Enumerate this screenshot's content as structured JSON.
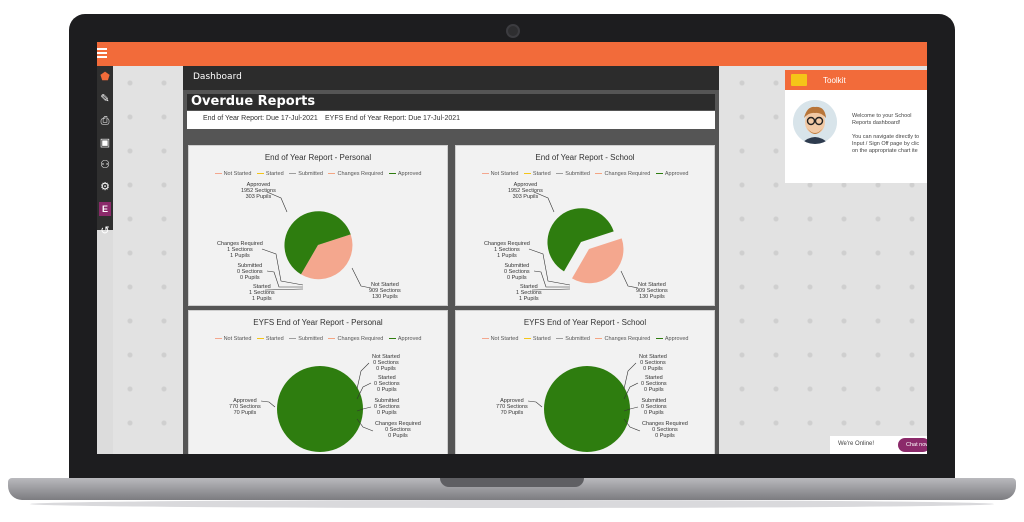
{
  "colors": {
    "accent": "#f26b3a",
    "approved": "#2e7d0f",
    "not_started": "#f4a78e",
    "started": "#f5c518",
    "submitted": "#9e9e9e",
    "changes_required": "#f4a582"
  },
  "topbar": {
    "menu_icon": "hamburger-icon"
  },
  "sidebar": {
    "icons": [
      "shield-icon",
      "pencil-icon",
      "printer-icon",
      "edit-box-icon",
      "users-icon",
      "gears-icon",
      "e-icon",
      "history-icon"
    ]
  },
  "dashboard": {
    "title": "Dashboard",
    "overdue_title": "Overdue Reports",
    "due_1": "End of Year Report: Due 17-Jul-2021",
    "due_2": "EYFS End of Year Report: Due 17-Jul-2021"
  },
  "legend": [
    "Not Started",
    "Started",
    "Submitted",
    "Changes Required",
    "Approved"
  ],
  "charts": [
    {
      "title": "End of Year Report - Personal",
      "approved": [
        "Approved",
        "1952 Sections",
        "303 Pupils"
      ],
      "changes": [
        "Changes Required",
        "1 Sections",
        "1 Pupils"
      ],
      "submitted": [
        "Submitted",
        "0 Sections",
        "0 Pupils"
      ],
      "started": [
        "Started",
        "1 Sections",
        "1 Pupils"
      ],
      "not_started": [
        "Not Started",
        "909 Sections",
        "130 Pupils"
      ]
    },
    {
      "title": "End of Year Report - School",
      "approved": [
        "Approved",
        "1952 Sections",
        "303 Pupils"
      ],
      "changes": [
        "Changes Required",
        "1 Sections",
        "1 Pupils"
      ],
      "submitted": [
        "Submitted",
        "0 Sections",
        "0 Pupils"
      ],
      "started": [
        "Started",
        "1 Sections",
        "1 Pupils"
      ],
      "not_started": [
        "Not Started",
        "909 Sections",
        "130 Pupils"
      ]
    },
    {
      "title": "EYFS End of Year Report - Personal",
      "approved": [
        "Approved",
        "770 Sections",
        "70 Pupils"
      ],
      "not_started": [
        "Not Started",
        "0 Sections",
        "0 Pupils"
      ],
      "started": [
        "Started",
        "0 Sections",
        "0 Pupils"
      ],
      "submitted": [
        "Submitted",
        "0 Sections",
        "0 Pupils"
      ],
      "changes": [
        "Changes Required",
        "0 Sections",
        "0 Pupils"
      ]
    },
    {
      "title": "EYFS End of Year Report - School",
      "approved": [
        "Approved",
        "770 Sections",
        "70 Pupils"
      ],
      "not_started": [
        "Not Started",
        "0 Sections",
        "0 Pupils"
      ],
      "started": [
        "Started",
        "0 Sections",
        "0 Pupils"
      ],
      "submitted": [
        "Submitted",
        "0 Sections",
        "0 Pupils"
      ],
      "changes": [
        "Changes Required",
        "0 Sections",
        "0 Pupils"
      ]
    }
  ],
  "chart_data": [
    {
      "type": "pie",
      "title": "End of Year Report - Personal",
      "categories": [
        "Approved",
        "Not Started",
        "Started",
        "Submitted",
        "Changes Required"
      ],
      "values": [
        1952,
        909,
        1,
        0,
        1
      ]
    },
    {
      "type": "pie",
      "title": "End of Year Report - School",
      "categories": [
        "Approved",
        "Not Started",
        "Started",
        "Submitted",
        "Changes Required"
      ],
      "values": [
        1952,
        909,
        1,
        0,
        1
      ]
    },
    {
      "type": "pie",
      "title": "EYFS End of Year Report - Personal",
      "categories": [
        "Approved",
        "Not Started",
        "Started",
        "Submitted",
        "Changes Required"
      ],
      "values": [
        770,
        0,
        0,
        0,
        0
      ]
    },
    {
      "type": "pie",
      "title": "EYFS End of Year Report - School",
      "categories": [
        "Approved",
        "Not Started",
        "Started",
        "Submitted",
        "Changes Required"
      ],
      "values": [
        770,
        0,
        0,
        0,
        0
      ]
    }
  ],
  "toolkit": {
    "title": "Toolkit",
    "lines": [
      "Welcome to your School",
      "Reports dashboard!",
      "",
      "You can navigate directly to",
      "Input / Sign Off page by clic",
      "on the appropriate chart ite"
    ]
  },
  "chat": {
    "status": "We're Online!",
    "button": "Chat now"
  }
}
